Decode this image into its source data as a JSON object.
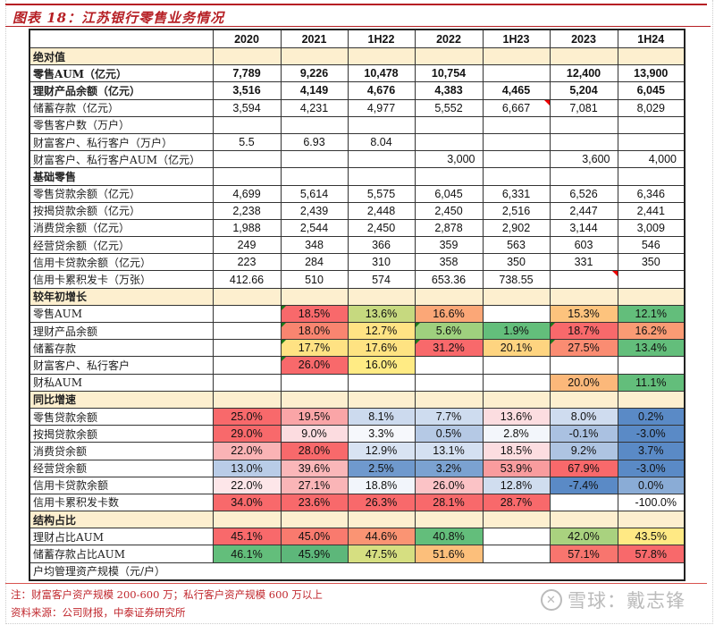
{
  "figure": {
    "title": "图表 18：江苏银行零售业务情况",
    "note": "注：财富客户资产规模 200-600 万；私行客户资产规模 600 万以上",
    "source": "资料来源：公司财报，中泰证券研究所",
    "watermark": "雪球：戴志锋"
  },
  "table": {
    "columns": [
      "",
      "2020",
      "2021",
      "1H22",
      "2022",
      "1H23",
      "2023",
      "1H24"
    ],
    "rows": [
      {
        "type": "section",
        "label": "绝对值",
        "cells": [
          "",
          "",
          "",
          "",
          "",
          "",
          ""
        ]
      },
      {
        "type": "bold",
        "label": "零售AUM（亿元）",
        "cells": [
          "7,789",
          "9,226",
          "10,478",
          "10,754",
          "",
          "12,400",
          "13,900"
        ]
      },
      {
        "type": "bold",
        "label": "理财产品余额（亿元）",
        "cells": [
          "3,516",
          "4,149",
          "4,676",
          "4,383",
          "4,465",
          "5,204",
          "6,045"
        ]
      },
      {
        "type": "data",
        "label": "储蓄存款（亿元）",
        "cells": [
          "3,594",
          "4,231",
          "4,977",
          "5,552",
          "6,667",
          "7,081",
          "8,029"
        ]
      },
      {
        "type": "data",
        "label": "零售客户数（万户）",
        "cells": [
          "",
          "",
          "",
          "",
          "",
          "",
          ""
        ]
      },
      {
        "type": "data",
        "label": "财富客户、私行客户（万户）",
        "cells": [
          "5.5",
          "6.93",
          "8.04",
          "",
          "",
          "",
          ""
        ]
      },
      {
        "type": "data",
        "label": "财富客户、私行客户AUM（亿元）",
        "cells": [
          "",
          "",
          "",
          "3,000",
          "",
          "3,600",
          "4,000"
        ]
      },
      {
        "type": "plainbold",
        "label": "基础零售",
        "cells": [
          "",
          "",
          "",
          "",
          "",
          "",
          ""
        ]
      },
      {
        "type": "data",
        "label": "零售贷款余额（亿元）",
        "cells": [
          "4,699",
          "5,614",
          "5,575",
          "6,045",
          "6,331",
          "6,526",
          "6,346"
        ]
      },
      {
        "type": "data",
        "label": "按揭贷款余额（亿元）",
        "cells": [
          "2,238",
          "2,439",
          "2,448",
          "2,450",
          "2,516",
          "2,447",
          "2,441"
        ]
      },
      {
        "type": "data",
        "label": "消费贷余额（亿元）",
        "cells": [
          "1,988",
          "2,544",
          "2,450",
          "2,878",
          "2,902",
          "3,144",
          "3,009"
        ]
      },
      {
        "type": "data",
        "label": "经营贷余额（亿元）",
        "cells": [
          "249",
          "348",
          "366",
          "359",
          "563",
          "603",
          "546"
        ]
      },
      {
        "type": "data",
        "label": "信用卡贷款余额（亿元）",
        "cells": [
          "223",
          "284",
          "310",
          "358",
          "350",
          "331",
          "350"
        ]
      },
      {
        "type": "data",
        "label": "信用卡累积发卡（万张）",
        "cells": [
          "412.66",
          "510",
          "574",
          "653.36",
          "738.55",
          "",
          ""
        ]
      },
      {
        "type": "section",
        "label": "较年初增长",
        "cells": [
          "",
          "",
          "",
          "",
          "",
          "",
          ""
        ]
      },
      {
        "type": "data",
        "label": "零售AUM",
        "cells": [
          "",
          "18.5%",
          "13.6%",
          "16.6%",
          "",
          "15.3%",
          "12.1%"
        ]
      },
      {
        "type": "data",
        "label": "理财产品余额",
        "cells": [
          "",
          "18.0%",
          "12.7%",
          "5.6%",
          "1.9%",
          "18.7%",
          "16.2%"
        ]
      },
      {
        "type": "data",
        "label": "储蓄存款",
        "cells": [
          "",
          "17.7%",
          "17.6%",
          "31.2%",
          "20.1%",
          "27.5%",
          "13.4%"
        ]
      },
      {
        "type": "data",
        "label": "财富客户、私行客户",
        "cells": [
          "",
          "26.0%",
          "16.0%",
          "",
          "",
          "",
          ""
        ]
      },
      {
        "type": "data",
        "label": "财私AUM",
        "cells": [
          "",
          "",
          "",
          "",
          "",
          "20.0%",
          "11.1%"
        ]
      },
      {
        "type": "section",
        "label": "同比增速",
        "cells": [
          "",
          "",
          "",
          "",
          "",
          "",
          ""
        ]
      },
      {
        "type": "data",
        "label": "零售贷款余额",
        "cells": [
          "25.0%",
          "19.5%",
          "8.1%",
          "7.7%",
          "13.6%",
          "8.0%",
          "0.2%"
        ]
      },
      {
        "type": "data",
        "label": "按揭贷款余额",
        "cells": [
          "29.0%",
          "9.0%",
          "3.3%",
          "0.5%",
          "2.8%",
          "-0.1%",
          "-3.0%"
        ]
      },
      {
        "type": "data",
        "label": "消费贷余额",
        "cells": [
          "22.0%",
          "28.0%",
          "12.9%",
          "13.1%",
          "18.5%",
          "9.2%",
          "3.7%"
        ]
      },
      {
        "type": "data",
        "label": "经营贷余额",
        "cells": [
          "13.0%",
          "39.6%",
          "2.5%",
          "3.2%",
          "53.9%",
          "67.9%",
          "-3.0%"
        ]
      },
      {
        "type": "data",
        "label": "信用卡贷款余额",
        "cells": [
          "22.0%",
          "27.1%",
          "18.8%",
          "26.0%",
          "12.8%",
          "-7.4%",
          "0.0%"
        ]
      },
      {
        "type": "data",
        "label": "信用卡累积发卡数",
        "cells": [
          "34.0%",
          "23.6%",
          "26.3%",
          "28.1%",
          "28.7%",
          "",
          "-100.0%"
        ]
      },
      {
        "type": "section",
        "label": "结构占比",
        "cells": [
          "",
          "",
          "",
          "",
          "",
          "",
          ""
        ]
      },
      {
        "type": "data",
        "label": "理财占比AUM",
        "cells": [
          "45.1%",
          "45.0%",
          "44.6%",
          "40.8%",
          "",
          "42.0%",
          "43.5%"
        ]
      },
      {
        "type": "data",
        "label": "储蓄存款占比AUM",
        "cells": [
          "46.1%",
          "45.9%",
          "47.5%",
          "51.6%",
          "",
          "57.1%",
          "57.8%"
        ]
      },
      {
        "type": "span",
        "label": "户均管理资产规模（元/户）",
        "cells": []
      }
    ],
    "cell_colors": {
      "15": [
        "#ffffff",
        "#f8696b",
        "#c6d97f",
        "#fba777",
        "#ffffff",
        "#fdc37d",
        "#63be7b"
      ],
      "16": [
        "#ffffff",
        "#f98570",
        "#ffe384",
        "#9fd07e",
        "#63be7b",
        "#f8696b",
        "#fa9b74"
      ],
      "17": [
        "#ffffff",
        "#ffe283",
        "#fee382",
        "#f8696b",
        "#fed480",
        "#fa8c72",
        "#63be7b"
      ],
      "18": [
        "#ffffff",
        "#f8696b",
        "#ffeb84",
        "#ffffff",
        "#ffffff",
        "#ffffff",
        "#ffffff"
      ],
      "19": [
        "#ffffff",
        "#ffffff",
        "#ffffff",
        "#ffffff",
        "#ffffff",
        "#fbb87a",
        "#63be7b"
      ],
      "21": [
        "#f8696b",
        "#faa5a7",
        "#ccdaee",
        "#cedcef",
        "#fcdde0",
        "#cfdcef",
        "#5a8ac6"
      ],
      "22": [
        "#f8696b",
        "#fcdce0",
        "#f6f8fc",
        "#b5c9e5",
        "#f3f6fb",
        "#aac1e1",
        "#5a8ac6"
      ],
      "23": [
        "#fab3b5",
        "#f8696b",
        "#d8e3f2",
        "#d4e0f1",
        "#fcdde0",
        "#aec4e2",
        "#5a8ac6"
      ],
      "24": [
        "#b9cce7",
        "#fab7b9",
        "#6f99cd",
        "#7ba2d1",
        "#f99c9e",
        "#f8696b",
        "#5a8ac6"
      ],
      "25": [
        "#fde6e9",
        "#fab5b7",
        "#f2f5fb",
        "#fbc3c6",
        "#d0ddef",
        "#5a8ac6",
        "#8aacd6"
      ],
      "26": [
        "#f8696b",
        "#f8696b",
        "#f8696b",
        "#f8696b",
        "#f8696b",
        "#ffffff",
        "#ffffff"
      ],
      "28": [
        "#f8696b",
        "#f97a6e",
        "#fa9473",
        "#63be7b",
        "#ffffff",
        "#a9d27f",
        "#ffe984"
      ],
      "29": [
        "#63be7b",
        "#5db77a",
        "#d6df81",
        "#fcbf7b",
        "#ffffff",
        "#f8756e",
        "#f8696b"
      ]
    },
    "green_triangle_cells": [
      [
        15,
        1
      ],
      [
        16,
        1
      ],
      [
        17,
        1
      ],
      [
        18,
        1
      ],
      [
        16,
        3
      ],
      [
        17,
        3
      ],
      [
        16,
        5
      ],
      [
        17,
        5
      ]
    ],
    "red_triangle_cells": [
      [
        3,
        4
      ],
      [
        13,
        5
      ]
    ]
  }
}
